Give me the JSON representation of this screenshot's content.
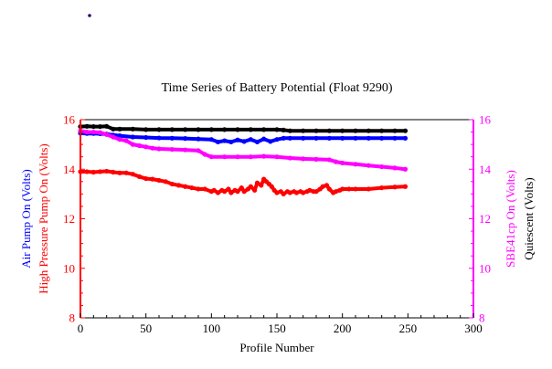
{
  "chart_data": {
    "type": "line",
    "title": "Time Series of Battery Potential (Float 9290)",
    "xlabel": "Profile Number",
    "xlim": [
      0,
      300
    ],
    "x_ticks": [
      "0",
      "50",
      "100",
      "150",
      "200",
      "250",
      "300"
    ],
    "ylim": [
      8,
      16
    ],
    "y_ticks": [
      "8",
      "10",
      "12",
      "14",
      "16"
    ],
    "grid": false,
    "left_axis_labels": [
      {
        "text": "Air Pump On (Volts)",
        "color": "#0000ff"
      },
      {
        "text": "High Pressure Pump On (Volts)",
        "color": "#ff0000"
      }
    ],
    "right_axis_labels": [
      {
        "text": "SBE41cp On (Volts)",
        "color": "#ff00ff"
      },
      {
        "text": "Quiescent (Volts)",
        "color": "#000000"
      }
    ],
    "left_axis_color": "#ff0000",
    "right_axis_color": "#ff00ff",
    "series": [
      {
        "name": "Quiescent (Volts)",
        "color": "#000000",
        "x": [
          0,
          5,
          10,
          15,
          20,
          25,
          30,
          40,
          50,
          60,
          70,
          80,
          90,
          100,
          110,
          120,
          130,
          140,
          150,
          155,
          160,
          170,
          180,
          190,
          200,
          210,
          220,
          230,
          240,
          248
        ],
        "y": [
          15.72,
          15.73,
          15.72,
          15.72,
          15.73,
          15.62,
          15.62,
          15.62,
          15.6,
          15.6,
          15.6,
          15.6,
          15.6,
          15.6,
          15.6,
          15.6,
          15.6,
          15.6,
          15.6,
          15.58,
          15.55,
          15.55,
          15.55,
          15.55,
          15.55,
          15.55,
          15.55,
          15.55,
          15.55,
          15.55
        ]
      },
      {
        "name": "Air Pump On (Volts)",
        "color": "#0000ff",
        "x": [
          0,
          5,
          10,
          15,
          20,
          25,
          30,
          40,
          50,
          60,
          70,
          80,
          90,
          100,
          105,
          110,
          115,
          120,
          125,
          130,
          135,
          140,
          145,
          150,
          155,
          160,
          170,
          180,
          190,
          200,
          210,
          220,
          230,
          240,
          248
        ],
        "y": [
          15.45,
          15.44,
          15.44,
          15.43,
          15.42,
          15.38,
          15.35,
          15.3,
          15.28,
          15.26,
          15.25,
          15.24,
          15.22,
          15.2,
          15.1,
          15.15,
          15.1,
          15.18,
          15.12,
          15.2,
          15.1,
          15.22,
          15.12,
          15.2,
          15.25,
          15.25,
          15.25,
          15.25,
          15.25,
          15.25,
          15.25,
          15.25,
          15.25,
          15.25,
          15.25
        ]
      },
      {
        "name": "SBE41cp On (Volts)",
        "color": "#ff00ff",
        "x": [
          0,
          5,
          10,
          15,
          20,
          25,
          30,
          35,
          40,
          45,
          50,
          55,
          60,
          70,
          80,
          90,
          95,
          100,
          110,
          120,
          130,
          140,
          150,
          160,
          170,
          180,
          190,
          195,
          200,
          210,
          220,
          230,
          240,
          248
        ],
        "y": [
          15.55,
          15.5,
          15.5,
          15.48,
          15.4,
          15.3,
          15.2,
          15.15,
          15.0,
          14.95,
          14.9,
          14.85,
          14.82,
          14.8,
          14.78,
          14.75,
          14.6,
          14.5,
          14.5,
          14.5,
          14.5,
          14.52,
          14.5,
          14.45,
          14.42,
          14.4,
          14.38,
          14.3,
          14.25,
          14.2,
          14.15,
          14.1,
          14.05,
          14.0
        ]
      },
      {
        "name": "High Pressure Pump On (Volts)",
        "color": "#ff0000",
        "x": [
          0,
          5,
          10,
          15,
          20,
          25,
          30,
          35,
          40,
          45,
          50,
          55,
          60,
          65,
          70,
          75,
          80,
          85,
          90,
          95,
          100,
          102,
          105,
          108,
          110,
          113,
          115,
          118,
          120,
          123,
          125,
          128,
          130,
          133,
          135,
          138,
          140,
          142,
          144,
          146,
          148,
          150,
          153,
          155,
          158,
          160,
          163,
          165,
          168,
          170,
          173,
          175,
          178,
          180,
          183,
          185,
          188,
          190,
          193,
          195,
          198,
          200,
          205,
          210,
          220,
          230,
          240,
          248
        ],
        "y": [
          13.9,
          13.9,
          13.88,
          13.9,
          13.92,
          13.88,
          13.85,
          13.85,
          13.8,
          13.7,
          13.62,
          13.6,
          13.55,
          13.5,
          13.4,
          13.35,
          13.3,
          13.25,
          13.2,
          13.2,
          13.1,
          13.15,
          13.05,
          13.15,
          13.1,
          13.2,
          13.05,
          13.15,
          13.1,
          13.25,
          13.1,
          13.2,
          13.3,
          13.15,
          13.45,
          13.35,
          13.6,
          13.5,
          13.4,
          13.3,
          13.15,
          13.05,
          13.1,
          13.0,
          13.1,
          13.05,
          13.1,
          13.05,
          13.1,
          13.05,
          13.1,
          13.15,
          13.1,
          13.1,
          13.2,
          13.3,
          13.35,
          13.2,
          13.05,
          13.1,
          13.15,
          13.2,
          13.2,
          13.2,
          13.2,
          13.25,
          13.28,
          13.3
        ]
      }
    ]
  }
}
